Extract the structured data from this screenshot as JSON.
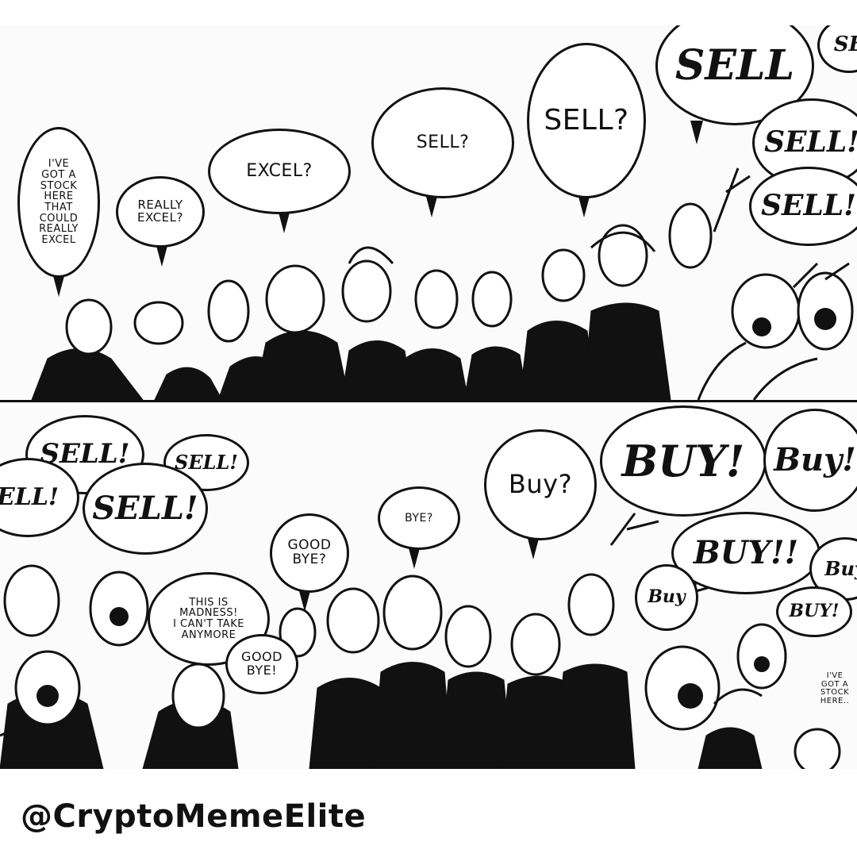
{
  "top_panel": {
    "bubbles": [
      {
        "id": "stock-excel",
        "text": "I'VE\nGOT A\nSTOCK\nHERE\nTHAT\nCOULD\nREALLY\nEXCEL"
      },
      {
        "id": "really-excel",
        "text": "REALLY\nEXCEL?"
      },
      {
        "id": "excel",
        "text": "EXCEL?"
      },
      {
        "id": "sell-q-1",
        "text": "SELL?"
      },
      {
        "id": "sell-q-2",
        "text": "SELL?"
      },
      {
        "id": "sell-big",
        "text": "SELL"
      },
      {
        "id": "sell-corner",
        "text": "SE"
      },
      {
        "id": "sell-excl-1",
        "text": "SELL!"
      },
      {
        "id": "sell-excl-2",
        "text": "SELL!"
      }
    ]
  },
  "bottom_panel": {
    "bubbles": [
      {
        "id": "sell-1",
        "text": "SELL!"
      },
      {
        "id": "sell-2",
        "text": "SELL!"
      },
      {
        "id": "sell-edge",
        "text": "ELL!"
      },
      {
        "id": "sell-3",
        "text": "SELL!"
      },
      {
        "id": "madness",
        "text": "THIS IS\nMADNESS!\nI CAN'T TAKE\nANYMORE"
      },
      {
        "id": "goodbye-1",
        "text": "GOOD\nBYE?"
      },
      {
        "id": "goodbye-2",
        "text": "GOOD\nBYE!"
      },
      {
        "id": "bye",
        "text": "BYE?"
      },
      {
        "id": "buy-q",
        "text": "Buy?"
      },
      {
        "id": "buy-1",
        "text": "BUY!"
      },
      {
        "id": "buy-2",
        "text": "Buy!"
      },
      {
        "id": "buy-3",
        "text": "BUY!!"
      },
      {
        "id": "buy-4",
        "text": "Buy"
      },
      {
        "id": "buy-5",
        "text": "Buy"
      },
      {
        "id": "buy-6",
        "text": "BUY!"
      },
      {
        "id": "stock-corner",
        "text": "I'VE\nGOT A\nSTOCK\nHERE.."
      }
    ]
  },
  "footer": {
    "handle": "@CryptoMemeElite"
  },
  "colors": {
    "ink": "#111111",
    "paper": "#ffffff"
  }
}
